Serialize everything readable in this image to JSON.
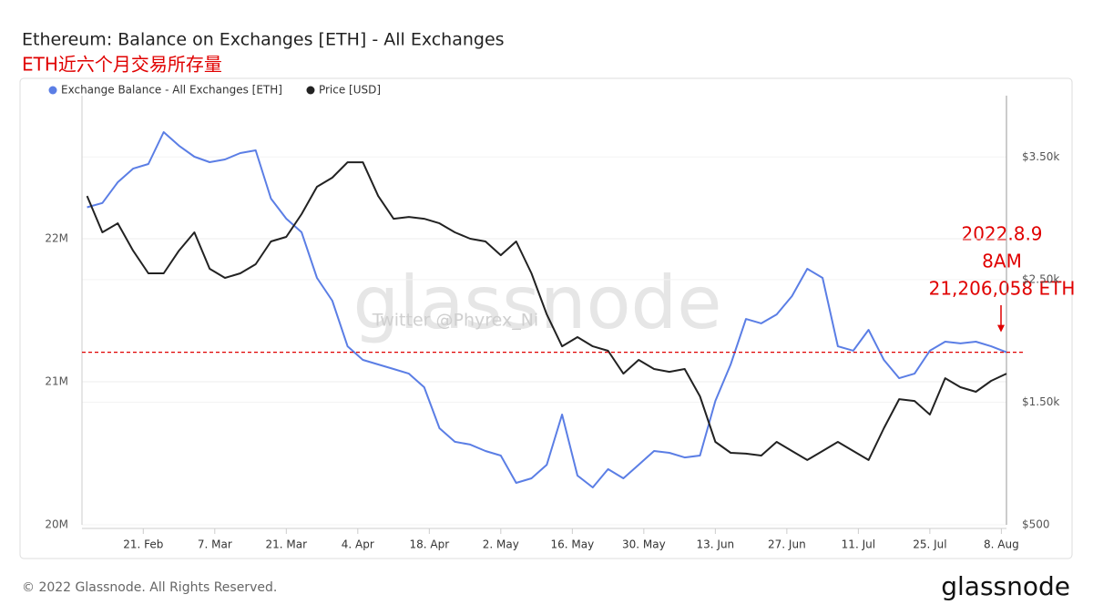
{
  "chart_data": {
    "type": "line",
    "title": "Ethereum: Balance on Exchanges [ETH] - All Exchanges",
    "subtitle": "ETH近六个月交易所存量",
    "watermark": "glassnode",
    "watermark_credit": "Twitter @Phyrex_Ni",
    "annotation": [
      "2022.8.9",
      "8AM",
      "21,206,058 ETH"
    ],
    "footer": "© 2022 Glassnode. All Rights Reserved.",
    "logo": "glassnode",
    "x": [
      "02-10",
      "02-13",
      "02-16",
      "02-19",
      "02-22",
      "02-25",
      "02-28",
      "03-03",
      "03-06",
      "03-09",
      "03-12",
      "03-15",
      "03-18",
      "03-21",
      "03-24",
      "03-27",
      "03-30",
      "04-02",
      "04-05",
      "04-08",
      "04-11",
      "04-14",
      "04-17",
      "04-20",
      "04-23",
      "04-26",
      "04-29",
      "05-02",
      "05-05",
      "05-08",
      "05-11",
      "05-14",
      "05-17",
      "05-20",
      "05-23",
      "05-26",
      "05-29",
      "06-01",
      "06-04",
      "06-07",
      "06-10",
      "06-13",
      "06-16",
      "06-19",
      "06-22",
      "06-25",
      "06-28",
      "07-01",
      "07-04",
      "07-07",
      "07-10",
      "07-13",
      "07-16",
      "07-19",
      "07-22",
      "07-25",
      "07-28",
      "07-31",
      "08-03",
      "08-06",
      "08-09"
    ],
    "xlim": [
      "02-09",
      "08-09"
    ],
    "xticks": [
      {
        "value": "02-21",
        "label": "21. Feb"
      },
      {
        "value": "03-07",
        "label": "7. Mar"
      },
      {
        "value": "03-21",
        "label": "21. Mar"
      },
      {
        "value": "04-04",
        "label": "4. Apr"
      },
      {
        "value": "04-18",
        "label": "18. Apr"
      },
      {
        "value": "05-02",
        "label": "2. May"
      },
      {
        "value": "05-16",
        "label": "16. May"
      },
      {
        "value": "05-30",
        "label": "30. May"
      },
      {
        "value": "06-13",
        "label": "13. Jun"
      },
      {
        "value": "06-27",
        "label": "27. Jun"
      },
      {
        "value": "07-11",
        "label": "11. Jul"
      },
      {
        "value": "07-25",
        "label": "25. Jul"
      },
      {
        "value": "08-08",
        "label": "8. Aug"
      }
    ],
    "ylim": [
      20000000,
      23000000
    ],
    "yticks": [
      {
        "value": 20000000,
        "label": "20M"
      },
      {
        "value": 21000000,
        "label": "21M"
      },
      {
        "value": 22000000,
        "label": "22M"
      }
    ],
    "y2lim": [
      500,
      4000
    ],
    "y2ticks": [
      {
        "value": 500,
        "label": "$500"
      },
      {
        "value": 1500,
        "label": "$1.50k"
      },
      {
        "value": 2500,
        "label": "$2.50k"
      },
      {
        "value": 3500,
        "label": "$3.50k"
      }
    ],
    "grid": true,
    "legend": "top-left",
    "series": [
      {
        "name": "Exchange Balance - All Exchanges [ETH]",
        "color": "#5b7ee5",
        "axis": "y",
        "values": [
          22220000,
          22250000,
          22395000,
          22490000,
          22522000,
          22745000,
          22650000,
          22573000,
          22535000,
          22554000,
          22599000,
          22618000,
          22280000,
          22140000,
          22045000,
          21726000,
          21567000,
          21248000,
          21153000,
          21121000,
          21089000,
          21057000,
          20962000,
          20675000,
          20580000,
          20561000,
          20516000,
          20484000,
          20293000,
          20325000,
          20420000,
          20771000,
          20344000,
          20261000,
          20389000,
          20325000,
          20420000,
          20516000,
          20503000,
          20471000,
          20484000,
          20866000,
          21121000,
          21439000,
          21408000,
          21471000,
          21599000,
          21790000,
          21726000,
          21248000,
          21217000,
          21363000,
          21153000,
          21025000,
          21057000,
          21217000,
          21280000,
          21268000,
          21280000,
          21248000,
          21206058
        ]
      },
      {
        "name": "Price [USD]",
        "color": "#222222",
        "axis": "y2",
        "values": [
          3182,
          2885,
          2959,
          2736,
          2551,
          2551,
          2736,
          2885,
          2588,
          2514,
          2551,
          2625,
          2811,
          2848,
          3034,
          3257,
          3331,
          3457,
          3457,
          3182,
          2996,
          3011,
          2996,
          2959,
          2885,
          2833,
          2811,
          2699,
          2811,
          2551,
          2216,
          1956,
          2031,
          1956,
          1919,
          1733,
          1845,
          1771,
          1748,
          1771,
          1548,
          1176,
          1087,
          1080,
          1065,
          1176,
          1102,
          1028,
          1102,
          1176,
          1102,
          1028,
          1288,
          1525,
          1510,
          1399,
          1696,
          1622,
          1585,
          1674,
          1733
        ]
      }
    ]
  }
}
